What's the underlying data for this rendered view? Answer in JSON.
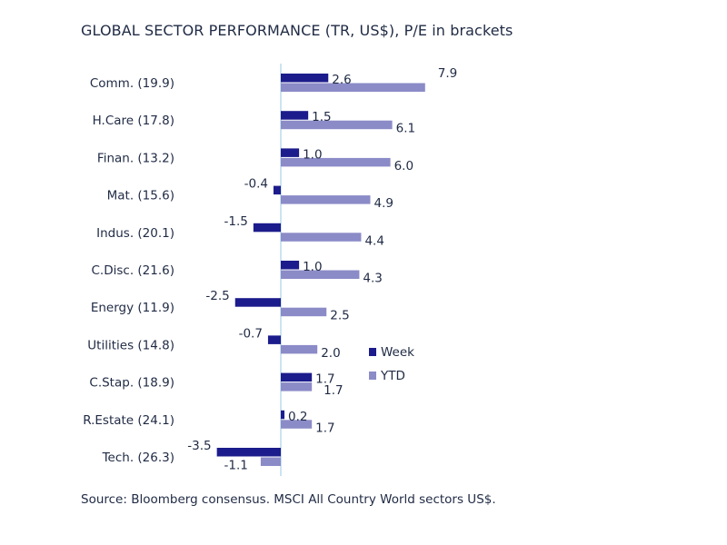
{
  "chart_data": {
    "type": "bar",
    "orientation": "horizontal",
    "title": "GLOBAL SECTOR PERFORMANCE (TR, US$), P/E in brackets",
    "source": "Source: Bloomberg consensus. MSCI All Country World sectors US$.",
    "categories": [
      "Comm. (19.9)",
      "H.Care (17.8)",
      "Finan. (13.2)",
      "Mat. (15.6)",
      "Indus. (20.1)",
      "C.Disc. (21.6)",
      "Energy (11.9)",
      "Utilities (14.8)",
      "C.Stap. (18.9)",
      "R.Estate (24.1)",
      "Tech. (26.3)"
    ],
    "series": [
      {
        "name": "Week",
        "color": "#1c1c8c",
        "values": [
          2.6,
          1.5,
          1.0,
          -0.4,
          -1.5,
          1.0,
          -2.5,
          -0.7,
          1.7,
          0.2,
          -3.5
        ],
        "labels": [
          "2.6",
          "1.5",
          "1.0",
          "-0.4",
          "-1.5",
          "1.0",
          "-2.5",
          "-0.7",
          "1.7",
          "0.2",
          "-3.5"
        ]
      },
      {
        "name": "YTD",
        "color": "#8b8bc8",
        "values": [
          7.9,
          6.1,
          6.0,
          4.9,
          4.4,
          4.3,
          2.5,
          2.0,
          1.7,
          1.7,
          -1.1
        ],
        "labels": [
          "7.9",
          "6.1",
          "6.0",
          "4.9",
          "4.4",
          "4.3",
          "2.5",
          "2.0",
          "1.7",
          "1.7",
          "-1.1"
        ]
      }
    ],
    "axis_color": "#a9d3e8",
    "legend_position": "right",
    "grid": false
  }
}
